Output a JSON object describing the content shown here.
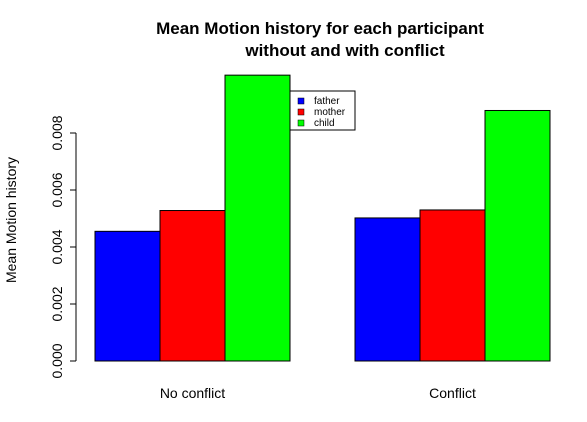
{
  "chart_data": {
    "type": "bar",
    "title_lines": [
      "Mean Motion history for each participant",
      "without and with conflict"
    ],
    "ylabel": "Mean Motion history",
    "xlabel": "",
    "categories": [
      "No conflict",
      "Conflict"
    ],
    "series": [
      {
        "name": "father",
        "color": "#0000ff",
        "values": [
          0.00455,
          0.00502
        ]
      },
      {
        "name": "mother",
        "color": "#ff0000",
        "values": [
          0.00528,
          0.0053
        ]
      },
      {
        "name": "child",
        "color": "#00ff00",
        "values": [
          0.01003,
          0.00879
        ]
      }
    ],
    "yticks": [
      "0.000",
      "0.002",
      "0.004",
      "0.006",
      "0.008"
    ],
    "ylim": [
      0,
      0.0102
    ],
    "grid": false,
    "legend_position": "top-right"
  }
}
